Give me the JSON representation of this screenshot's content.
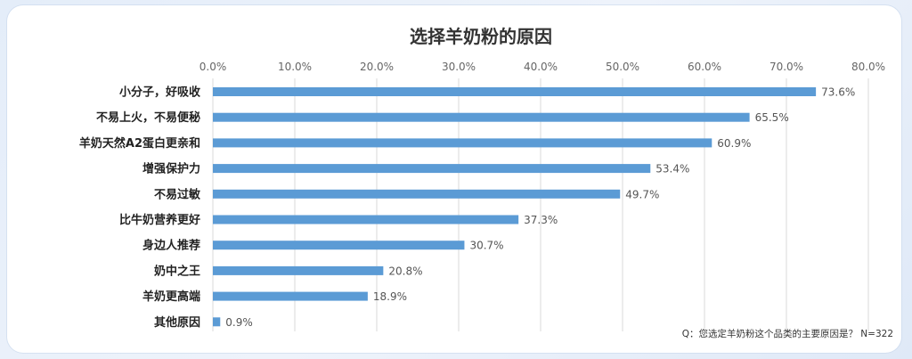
{
  "chart_data": {
    "type": "bar",
    "orientation": "horizontal",
    "title": "选择羊奶粉的原因",
    "categories": [
      "小分子，好吸收",
      "不易上火，不易便秘",
      "羊奶天然A2蛋白更亲和",
      "增强保护力",
      "不易过敏",
      "比牛奶营养更好",
      "身边人推荐",
      "奶中之王",
      "羊奶更高端",
      "其他原因"
    ],
    "values": [
      73.6,
      65.5,
      60.9,
      53.4,
      49.7,
      37.3,
      30.7,
      20.8,
      18.9,
      0.9
    ],
    "value_labels": [
      "73.6%",
      "65.5%",
      "60.9%",
      "53.4%",
      "49.7%",
      "37.3%",
      "30.7%",
      "20.8%",
      "18.9%",
      "0.9%"
    ],
    "xlim": [
      0,
      80
    ],
    "x_ticks": [
      0,
      10,
      20,
      30,
      40,
      50,
      60,
      70,
      80
    ],
    "x_tick_labels": [
      "0.0%",
      "10.0%",
      "20.0%",
      "30.0%",
      "40.0%",
      "50.0%",
      "60.0%",
      "70.0%",
      "80.0%"
    ],
    "axis_position": "top",
    "grid": true,
    "bar_color": "#5b9bd5",
    "note": "Q：您选定羊奶粉这个品类的主要原因是？ N=322"
  }
}
